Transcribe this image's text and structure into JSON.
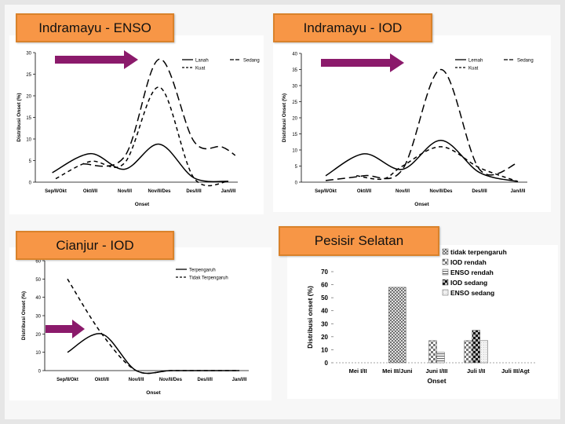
{
  "slide": {
    "titles": {
      "enso": "Indramayu - ENSO",
      "iod": "Indramayu - IOD",
      "cianjur": "Cianjur - IOD",
      "pesisir": "Pesisir Selatan"
    },
    "arrow_color": "#8b1a6b",
    "title_bg": "#f79646"
  },
  "chart_data": [
    {
      "id": "indramayu-enso",
      "type": "line",
      "categories": [
        "Sep/II/Okt",
        "Okt/I/II",
        "Nov/I/I",
        "Nov/II/Des",
        "Des/I/II",
        "Jan/I/II"
      ],
      "x_values": [
        0,
        1,
        2,
        3,
        4,
        5
      ],
      "xlabel": "Onset",
      "ylabel": "Distribusi Onset (%)",
      "ylim": [
        0,
        30
      ],
      "yticks": [
        0,
        5,
        10,
        15,
        20,
        25,
        30
      ],
      "legend": [
        "Lanah",
        "Sedang",
        "Kuat"
      ],
      "legend_position": "top-right",
      "series": [
        {
          "name": "Lanah",
          "style": "solid",
          "points": [
            [
              -0.1,
              2.2
            ],
            [
              1.0,
              6.6
            ],
            [
              2.0,
              3.0
            ],
            [
              3.0,
              8.8
            ],
            [
              4.0,
              1.0
            ],
            [
              5.0,
              0.2
            ]
          ]
        },
        {
          "name": "Sedang",
          "style": "long-dash",
          "points": [
            [
              0.8,
              4.2
            ],
            [
              2.0,
              6.0
            ],
            [
              3.0,
              28.5
            ],
            [
              4.0,
              9.5
            ],
            [
              4.8,
              8.2
            ],
            [
              5.2,
              6.2
            ]
          ]
        },
        {
          "name": "Kuat",
          "style": "dash",
          "points": [
            [
              0.0,
              0.8
            ],
            [
              1.0,
              4.8
            ],
            [
              2.0,
              4.5
            ],
            [
              3.0,
              22.0
            ],
            [
              4.0,
              1.0
            ],
            [
              5.0,
              0.2
            ]
          ]
        }
      ]
    },
    {
      "id": "indramayu-iod",
      "type": "line",
      "categories": [
        "Sep/II/Okt",
        "Okt/I/II",
        "Nov/I/I",
        "Nov/II/Des",
        "Des/I/II",
        "Jan/I/II"
      ],
      "x_values": [
        0,
        1,
        2,
        3,
        4,
        5
      ],
      "xlabel": "Onset",
      "ylabel": "Distribusi Onset (%)",
      "ylim": [
        0,
        40
      ],
      "yticks": [
        0,
        5,
        10,
        15,
        20,
        25,
        30,
        35,
        40
      ],
      "legend": [
        "Lemah",
        "Sedang",
        "Kuat"
      ],
      "legend_position": "top-right",
      "series": [
        {
          "name": "Lemah",
          "style": "solid",
          "points": [
            [
              0.0,
              2.0
            ],
            [
              1.0,
              8.8
            ],
            [
              2.0,
              4.0
            ],
            [
              3.0,
              13.0
            ],
            [
              4.0,
              3.0
            ],
            [
              5.0,
              0.2
            ]
          ]
        },
        {
          "name": "Sedang",
          "style": "long-dash",
          "points": [
            [
              0.0,
              0.5
            ],
            [
              1.0,
              2.0
            ],
            [
              2.0,
              4.0
            ],
            [
              3.0,
              35.0
            ],
            [
              4.0,
              4.0
            ],
            [
              5.0,
              6.0
            ]
          ]
        },
        {
          "name": "Kuat",
          "style": "dash",
          "points": [
            [
              0.8,
              2.0
            ],
            [
              1.5,
              1.0
            ],
            [
              2.0,
              5.0
            ],
            [
              3.0,
              11.0
            ],
            [
              4.0,
              4.5
            ],
            [
              5.0,
              0.2
            ]
          ]
        }
      ]
    },
    {
      "id": "cianjur-iod",
      "type": "line",
      "categories": [
        "Sep/II/Okt",
        "Okt/I/II",
        "Nov/I/II",
        "Nov/II/Des",
        "Des/I/II",
        "Jan/I/II"
      ],
      "x_values": [
        0,
        1,
        2,
        3,
        4,
        5
      ],
      "xlabel": "Onset",
      "ylabel": "Distribusi Onset (%)",
      "ylim": [
        0,
        60
      ],
      "yticks": [
        0,
        10,
        20,
        30,
        40,
        50,
        60
      ],
      "legend": [
        "Terpengaruh",
        "Tidak Terpengaruh"
      ],
      "legend_position": "top-right",
      "series": [
        {
          "name": "Terpengaruh",
          "style": "solid",
          "points": [
            [
              0.0,
              10.0
            ],
            [
              1.0,
              20.0
            ],
            [
              2.0,
              0.0
            ],
            [
              3.0,
              0.0
            ],
            [
              4.0,
              0.0
            ],
            [
              5.0,
              0.0
            ]
          ]
        },
        {
          "name": "Tidak Terpengaruh",
          "style": "dash",
          "points": [
            [
              0.0,
              50.0
            ],
            [
              1.0,
              20.0
            ],
            [
              2.0,
              0.0
            ],
            [
              3.0,
              0.0
            ],
            [
              4.0,
              0.0
            ],
            [
              5.0,
              0.0
            ]
          ]
        }
      ]
    },
    {
      "id": "pesisir-selatan",
      "type": "bar",
      "categories": [
        "Mei I/II",
        "Mei III/Juni",
        "Juni I/III",
        "Juli I/II",
        "Juli III/Agt"
      ],
      "xlabel": "Onset",
      "ylabel": "Distribusi onset (%)",
      "ylim": [
        0,
        70
      ],
      "yticks": [
        0,
        10,
        20,
        30,
        40,
        50,
        60,
        70
      ],
      "legend_position": "top-right",
      "series": [
        {
          "name": "tidak terpengaruh",
          "pattern": "cross-hatch",
          "values": [
            0,
            58,
            0,
            0,
            0
          ]
        },
        {
          "name": "IOD rendah",
          "pattern": "checker",
          "values": [
            0,
            0,
            17,
            17,
            0
          ]
        },
        {
          "name": "ENSO rendah",
          "pattern": "horizontal-lines",
          "values": [
            0,
            0,
            8,
            0,
            0
          ]
        },
        {
          "name": "IOD sedang",
          "pattern": "dark-checker",
          "values": [
            0,
            0,
            0,
            25,
            0
          ]
        },
        {
          "name": "ENSO sedang",
          "pattern": "light-dots",
          "values": [
            0,
            0,
            0,
            17,
            0
          ]
        }
      ]
    }
  ]
}
